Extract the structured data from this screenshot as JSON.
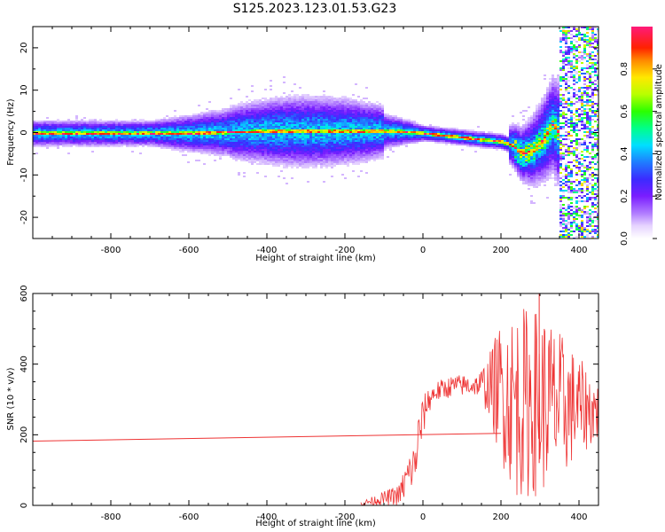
{
  "figure": {
    "title": "S125.2023.123.01.53.G23"
  },
  "chart_data": [
    {
      "type": "heatmap",
      "xlabel": "Height of straight line (km)",
      "ylabel": "Frequency (Hz)",
      "xlim": [
        -1000,
        450
      ],
      "ylim": [
        -25,
        25
      ],
      "xticks": [
        -800,
        -600,
        -400,
        -200,
        0,
        200,
        400
      ],
      "yticks": [
        -20,
        -10,
        0,
        10,
        20
      ],
      "colorbar": {
        "label": "Normalized spectral amplitude",
        "range": [
          0,
          1
        ],
        "ticks": [
          "0.0",
          "0.2",
          "0.4",
          "0.6",
          "0.8"
        ],
        "colormap": "gist_ncar-like (white, purple, blue, cyan, green, yellow, orange, red, magenta)"
      },
      "ridge_frequency_hz": [
        {
          "x": -990,
          "y": 0.0
        },
        {
          "x": -600,
          "y": 0.0
        },
        {
          "x": -400,
          "y": 0.5
        },
        {
          "x": -100,
          "y": 0.5
        },
        {
          "x": -40,
          "y": 0.3
        },
        {
          "x": 0,
          "y": 0.0
        },
        {
          "x": 50,
          "y": -0.5
        },
        {
          "x": 100,
          "y": -1.0
        },
        {
          "x": 150,
          "y": -1.5
        },
        {
          "x": 200,
          "y": -2.0
        },
        {
          "x": 230,
          "y": -3.0
        },
        {
          "x": 250,
          "y": -5.0
        },
        {
          "x": 280,
          "y": -4.0
        },
        {
          "x": 310,
          "y": -1.0
        },
        {
          "x": 330,
          "y": 2.0
        },
        {
          "x": 345,
          "y": 0.0
        }
      ],
      "noise_region": {
        "x_start": 345,
        "x_end": 450,
        "freq_range": [
          -25,
          25
        ]
      }
    },
    {
      "type": "line",
      "xlabel": "Height of straight line (km)",
      "ylabel": "SNR (10 * v/v)",
      "xlim": [
        -1000,
        450
      ],
      "ylim": [
        0,
        600
      ],
      "xticks": [
        -800,
        -600,
        -400,
        -200,
        0,
        200,
        400
      ],
      "yticks": [
        0,
        200,
        400,
        600
      ],
      "color": "#ee3333",
      "series": [
        {
          "values_envelope": [
            {
              "x": -160,
              "low": 0,
              "high": 10
            },
            {
              "x": -60,
              "low": 0,
              "high": 60
            },
            {
              "x": -40,
              "low": 20,
              "high": 140
            },
            {
              "x": -20,
              "low": 60,
              "high": 180
            },
            {
              "x": -10,
              "low": 120,
              "high": 280
            },
            {
              "x": 10,
              "low": 250,
              "high": 330
            },
            {
              "x": 30,
              "low": 290,
              "high": 350
            },
            {
              "x": 80,
              "low": 310,
              "high": 370
            },
            {
              "x": 140,
              "low": 310,
              "high": 370
            },
            {
              "x": 170,
              "low": 250,
              "high": 430
            },
            {
              "x": 200,
              "low": 120,
              "high": 530
            },
            {
              "x": 240,
              "low": 20,
              "high": 560
            },
            {
              "x": 280,
              "low": 20,
              "high": 570
            },
            {
              "x": 320,
              "low": 40,
              "high": 540
            },
            {
              "x": 360,
              "low": 80,
              "high": 480
            },
            {
              "x": 400,
              "low": 140,
              "high": 420
            },
            {
              "x": 450,
              "low": 180,
              "high": 350
            }
          ],
          "spike": {
            "x": 298,
            "y": 600
          }
        }
      ],
      "extra_lines": [
        {
          "x": [
            -1000,
            200
          ],
          "y": [
            182,
            204
          ]
        }
      ]
    }
  ]
}
